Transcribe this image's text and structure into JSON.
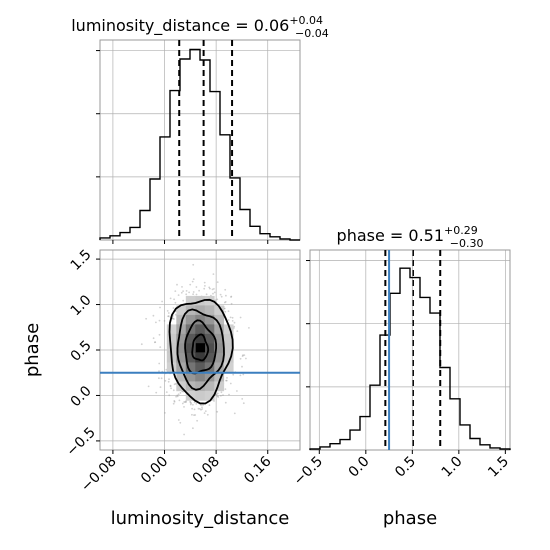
{
  "chart_data": {
    "type": "corner",
    "parameters": [
      "luminosity_distance",
      "phase"
    ],
    "grid": true,
    "marginals": [
      {
        "parameter": "luminosity_distance",
        "title_param": "luminosity_distance",
        "title_value": "0.06",
        "title_plus": "+0.04",
        "title_minus": "−0.04",
        "xlim": [
          -0.1,
          0.21
        ],
        "bin_edges": [
          -0.1,
          -0.0845,
          -0.069,
          -0.0535,
          -0.038,
          -0.0225,
          -0.007,
          0.0085,
          0.024,
          0.0395,
          0.055,
          0.0705,
          0.086,
          0.1015,
          0.117,
          0.1325,
          0.148,
          0.1635,
          0.179,
          0.1945,
          0.21
        ],
        "counts": [
          2,
          4,
          7,
          12,
          28,
          58,
          98,
          142,
          172,
          181,
          171,
          141,
          100,
          59,
          29,
          13,
          6,
          3,
          1,
          0
        ],
        "quantiles": [
          0.0228,
          0.0606,
          0.1047
        ],
        "ticks": [
          -0.08,
          0.0,
          0.08,
          0.16
        ]
      },
      {
        "parameter": "phase",
        "title_param": "phase",
        "title_value": "0.51",
        "title_plus": "+0.29",
        "title_minus": "−0.30",
        "xlim": [
          -0.6,
          1.55
        ],
        "bin_edges": [
          -0.6,
          -0.4925,
          -0.385,
          -0.2775,
          -0.17,
          -0.0625,
          0.045,
          0.1525,
          0.26,
          0.3675,
          0.475,
          0.5825,
          0.69,
          0.7975,
          0.905,
          1.0125,
          1.12,
          1.2275,
          1.335,
          1.4425,
          1.55
        ],
        "counts": [
          1,
          3,
          6,
          10,
          19,
          32,
          62,
          110,
          150,
          174,
          165,
          146,
          131,
          79,
          49,
          24,
          11,
          5,
          2,
          1
        ],
        "quantiles": [
          0.21,
          0.51,
          0.8
        ],
        "truth": 0.25,
        "ticks": [
          -0.5,
          0.0,
          0.5,
          1.0,
          1.5
        ]
      }
    ],
    "joint": {
      "x": "luminosity_distance",
      "y": "phase",
      "xlim": [
        -0.1,
        0.21
      ],
      "ylim": [
        -0.6,
        1.6
      ],
      "xticks": [
        -0.08,
        0.0,
        0.08,
        0.16
      ],
      "yticks": [
        -0.5,
        0.0,
        0.5,
        1.0,
        1.5
      ],
      "center": [
        0.055,
        0.52
      ],
      "spread": [
        0.024,
        0.28
      ],
      "truth_y": 0.25,
      "contour_sigmas": [
        0.5,
        1.0,
        1.5,
        2.0
      ]
    },
    "xlabel_1": "luminosity_distance",
    "xlabel_2": "phase",
    "ylabel": "phase"
  },
  "colors": {
    "hist": "#000000",
    "truth": "#3b7fbf",
    "grid": "#b0b0b0",
    "scatter": "#9a9a9a"
  }
}
